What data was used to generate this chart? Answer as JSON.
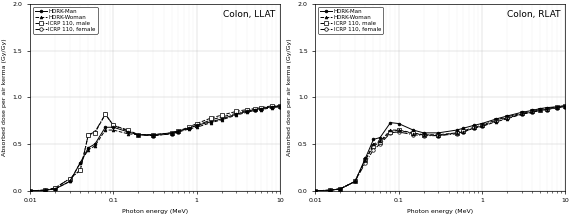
{
  "energy": [
    0.01,
    0.015,
    0.02,
    0.03,
    0.04,
    0.05,
    0.06,
    0.08,
    0.1,
    0.15,
    0.2,
    0.3,
    0.5,
    0.6,
    0.8,
    1.0,
    1.5,
    2.0,
    3.0,
    4.0,
    5.0,
    6.0,
    8.0,
    10.0
  ],
  "LLAT_HDRK_man": [
    0.0,
    0.005,
    0.02,
    0.1,
    0.3,
    0.46,
    0.5,
    0.68,
    0.68,
    0.63,
    0.6,
    0.6,
    0.62,
    0.64,
    0.67,
    0.7,
    0.74,
    0.77,
    0.82,
    0.85,
    0.87,
    0.88,
    0.9,
    0.91
  ],
  "LLAT_HDRK_woman": [
    0.0,
    0.005,
    0.02,
    0.1,
    0.3,
    0.44,
    0.48,
    0.65,
    0.65,
    0.61,
    0.6,
    0.59,
    0.61,
    0.63,
    0.66,
    0.68,
    0.73,
    0.76,
    0.81,
    0.84,
    0.86,
    0.87,
    0.89,
    0.9
  ],
  "LLAT_ICRP_male": [
    0.0,
    0.005,
    0.03,
    0.13,
    0.22,
    0.6,
    0.62,
    0.82,
    0.7,
    0.65,
    0.6,
    0.6,
    0.62,
    0.64,
    0.68,
    0.72,
    0.78,
    0.81,
    0.85,
    0.87,
    0.88,
    0.89,
    0.91,
    0.91
  ],
  "LLAT_ICRP_female": [
    0.0,
    0.005,
    0.03,
    0.13,
    0.22,
    0.6,
    0.63,
    0.82,
    0.7,
    0.64,
    0.6,
    0.59,
    0.61,
    0.63,
    0.67,
    0.7,
    0.76,
    0.79,
    0.83,
    0.86,
    0.87,
    0.88,
    0.9,
    0.9
  ],
  "RLAT_HDRK_man": [
    0.0,
    0.005,
    0.02,
    0.1,
    0.35,
    0.55,
    0.57,
    0.73,
    0.72,
    0.65,
    0.62,
    0.62,
    0.65,
    0.67,
    0.7,
    0.72,
    0.77,
    0.8,
    0.84,
    0.86,
    0.88,
    0.89,
    0.9,
    0.91
  ],
  "RLAT_HDRK_woman": [
    0.0,
    0.005,
    0.02,
    0.1,
    0.33,
    0.5,
    0.53,
    0.65,
    0.65,
    0.61,
    0.6,
    0.59,
    0.62,
    0.63,
    0.67,
    0.69,
    0.74,
    0.77,
    0.82,
    0.84,
    0.86,
    0.87,
    0.89,
    0.9
  ],
  "RLAT_ICRP_male": [
    0.0,
    0.005,
    0.02,
    0.1,
    0.33,
    0.48,
    0.52,
    0.63,
    0.65,
    0.62,
    0.6,
    0.6,
    0.62,
    0.64,
    0.68,
    0.7,
    0.76,
    0.79,
    0.83,
    0.85,
    0.87,
    0.88,
    0.9,
    0.91
  ],
  "RLAT_ICRP_female": [
    0.0,
    0.005,
    0.02,
    0.1,
    0.3,
    0.44,
    0.5,
    0.62,
    0.63,
    0.6,
    0.59,
    0.59,
    0.61,
    0.63,
    0.67,
    0.69,
    0.75,
    0.78,
    0.82,
    0.84,
    0.86,
    0.87,
    0.89,
    0.9
  ],
  "ylabel": "Absorbed dose per air kerma (Gy/Gy)",
  "xlabel": "Photon energy (MeV)",
  "title_llat": "Colon, LLAT",
  "title_rlat": "Colon, RLAT",
  "ylim": [
    0.0,
    2.0
  ],
  "xlim": [
    0.01,
    10.0
  ],
  "yticks": [
    0.0,
    0.5,
    1.0,
    1.5,
    2.0
  ],
  "xticks": [
    0.01,
    0.1,
    1,
    10
  ],
  "xticklabels": [
    "0.01",
    "0.1",
    "1",
    "10"
  ],
  "legend_labels": [
    "HDRK-Man",
    "HDRK-Woman",
    "ICRP 110, male",
    "ICRP 110, female"
  ],
  "bg_color": "white",
  "line_width": 0.7,
  "marker_size": 2.0,
  "font_size_tick": 4.5,
  "font_size_label": 4.5,
  "font_size_legend": 4.0,
  "font_size_title": 6.5
}
